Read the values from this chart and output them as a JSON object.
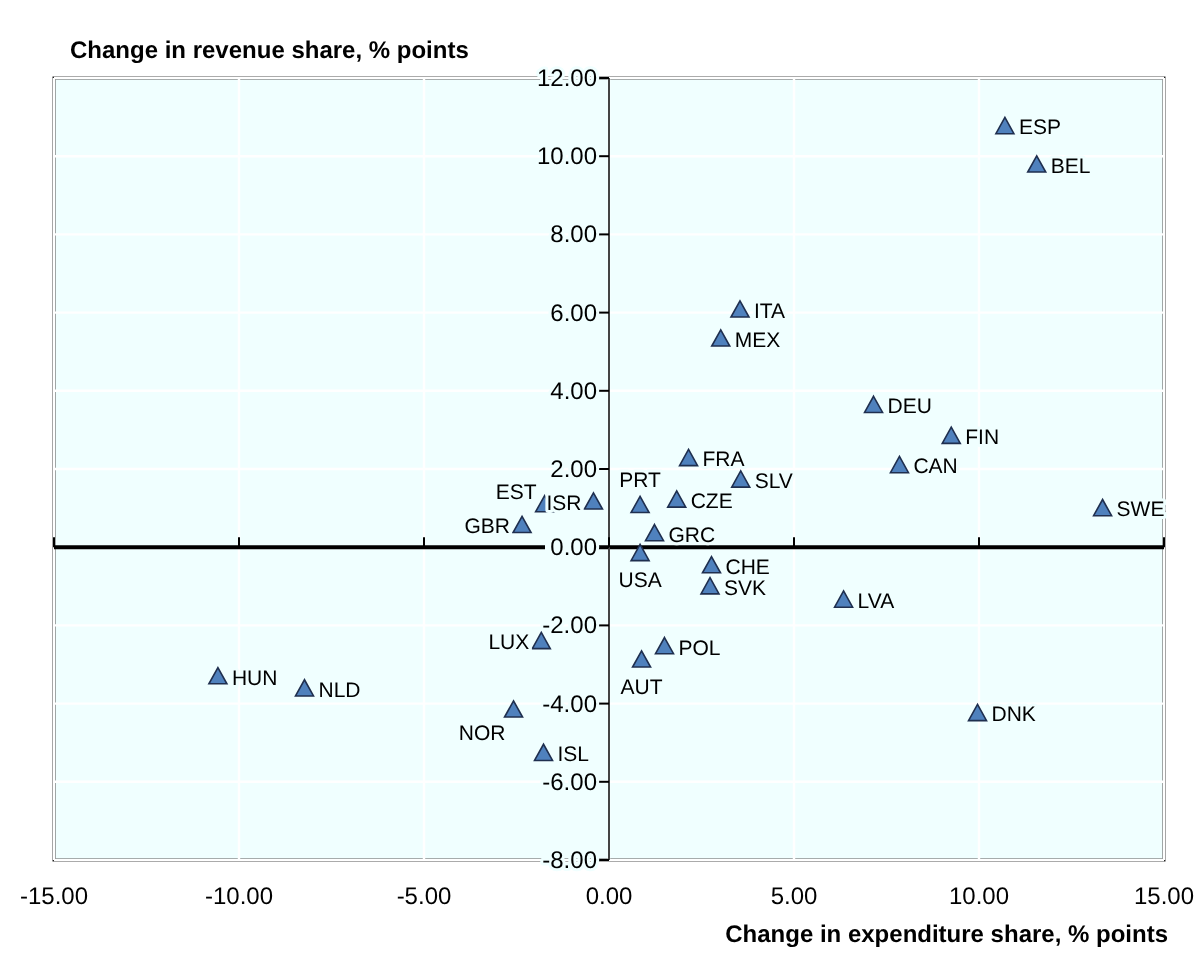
{
  "chart_data": {
    "type": "scatter",
    "xlabel": "Change in expenditure share, % points",
    "ylabel": "Change in revenue share, % points",
    "xlim": [
      -15,
      15
    ],
    "ylim": [
      -8,
      12
    ],
    "xticks": [
      {
        "value": -15,
        "label": "-15.00"
      },
      {
        "value": -10,
        "label": "-10.00"
      },
      {
        "value": -5,
        "label": "-5.00"
      },
      {
        "value": 0,
        "label": "0.00"
      },
      {
        "value": 5,
        "label": "5.00"
      },
      {
        "value": 10,
        "label": "10.00"
      },
      {
        "value": 15,
        "label": "15.00"
      }
    ],
    "yticks": [
      {
        "value": -8,
        "label": "-8.00"
      },
      {
        "value": -6,
        "label": "-6.00"
      },
      {
        "value": -4,
        "label": "-4.00"
      },
      {
        "value": -2,
        "label": "-2.00"
      },
      {
        "value": 0,
        "label": "0.00"
      },
      {
        "value": 2,
        "label": "2.00"
      },
      {
        "value": 4,
        "label": "4.00"
      },
      {
        "value": 6,
        "label": "6.00"
      },
      {
        "value": 8,
        "label": "8.00"
      },
      {
        "value": 10,
        "label": "10.00"
      },
      {
        "value": 12,
        "label": "12.00"
      }
    ],
    "grid": true,
    "marker": "triangle",
    "series": [
      {
        "color": "#4f81bd",
        "x": [
          10.7,
          11.56,
          3.54,
          3.02,
          7.15,
          9.25,
          7.85,
          2.15,
          3.56,
          0.84,
          1.83,
          1.23,
          13.34,
          0.84,
          2.77,
          2.73,
          6.34,
          1.5,
          0.88,
          9.96,
          -1.74,
          -0.42,
          -2.35,
          -1.83,
          -10.57,
          -8.23,
          -2.58,
          -1.77
        ],
        "values": [
          10.76,
          9.78,
          6.07,
          5.33,
          3.63,
          2.84,
          2.09,
          2.27,
          1.72,
          1.07,
          1.21,
          0.35,
          0.99,
          -0.16,
          -0.47,
          -1.01,
          -1.35,
          -2.54,
          -2.88,
          -4.25,
          1.09,
          1.16,
          0.56,
          -2.41,
          -3.31,
          -3.62,
          -4.16,
          -5.27
        ]
      }
    ],
    "annotations": [
      {
        "text": "ESP",
        "x": 10.7,
        "y": 10.76
      },
      {
        "text": "BEL",
        "x": 11.56,
        "y": 9.78
      },
      {
        "text": "ITA",
        "x": 3.54,
        "y": 6.07
      },
      {
        "text": "MEX",
        "x": 3.02,
        "y": 5.33
      },
      {
        "text": "DEU",
        "x": 7.15,
        "y": 3.63
      },
      {
        "text": "FIN",
        "x": 9.25,
        "y": 2.84
      },
      {
        "text": "CAN",
        "x": 7.85,
        "y": 2.09
      },
      {
        "text": "FRA",
        "x": 2.15,
        "y": 2.27
      },
      {
        "text": "SLV",
        "x": 3.56,
        "y": 1.72
      },
      {
        "text": "PRT",
        "x": 0.84,
        "y": 1.07
      },
      {
        "text": "CZE",
        "x": 1.83,
        "y": 1.21
      },
      {
        "text": "GRC",
        "x": 1.23,
        "y": 0.35
      },
      {
        "text": "SWE",
        "x": 13.34,
        "y": 0.99
      },
      {
        "text": "USA",
        "x": 0.84,
        "y": -0.16
      },
      {
        "text": "CHE",
        "x": 2.77,
        "y": -0.47
      },
      {
        "text": "SVK",
        "x": 2.73,
        "y": -1.01
      },
      {
        "text": "LVA",
        "x": 6.34,
        "y": -1.35
      },
      {
        "text": "POL",
        "x": 1.5,
        "y": -2.54
      },
      {
        "text": "AUT",
        "x": 0.88,
        "y": -2.88
      },
      {
        "text": "DNK",
        "x": 9.96,
        "y": -4.25
      },
      {
        "text": "EST",
        "x": -1.74,
        "y": 1.09
      },
      {
        "text": "ISR",
        "x": -0.42,
        "y": 1.16
      },
      {
        "text": "GBR",
        "x": -2.35,
        "y": 0.56
      },
      {
        "text": "LUX",
        "x": -1.83,
        "y": -2.41
      },
      {
        "text": "HUN",
        "x": -10.57,
        "y": -3.31
      },
      {
        "text": "NLD",
        "x": -8.23,
        "y": -3.62
      },
      {
        "text": "NOR",
        "x": -2.58,
        "y": -4.16
      },
      {
        "text": "ISL",
        "x": -1.77,
        "y": -5.27
      }
    ]
  }
}
